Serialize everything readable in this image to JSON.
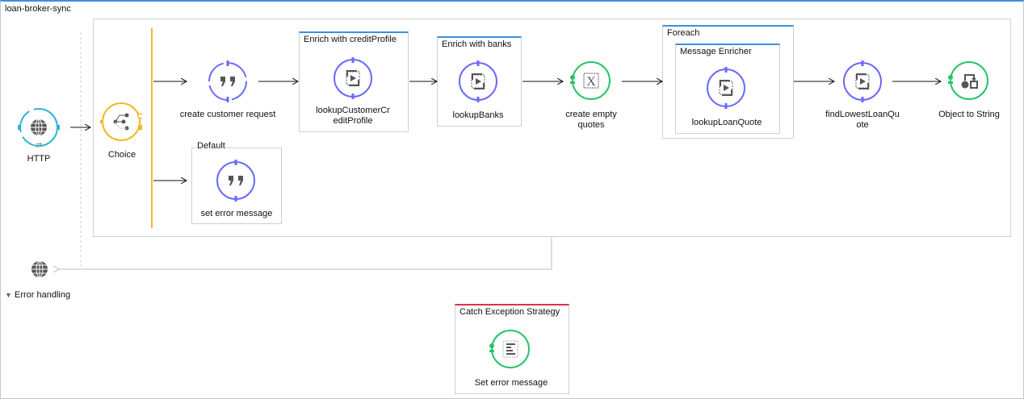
{
  "flow": {
    "name": "loan-broker-sync"
  },
  "colors": {
    "accent": "#3b8fe0",
    "http": "#2bb5d4",
    "choice": "#f2b928",
    "component": "#6a6aff",
    "transformer": "#27c46a",
    "error": "#d8334a"
  },
  "nodes": {
    "http": {
      "label": "HTTP",
      "icon": "globe-icon"
    },
    "choice": {
      "label": "Choice",
      "icon": "choice-branch-icon"
    },
    "create_customer_request": {
      "label": "create customer request",
      "icon": "quote-icon"
    },
    "lookup_customer": {
      "label": "lookupCustomerCreditProfile",
      "line1": "lookupCustomerCr",
      "line2": "editProfile",
      "icon": "flow-ref-icon"
    },
    "lookup_banks": {
      "label": "lookupBanks",
      "icon": "flow-ref-icon"
    },
    "create_empty_quotes": {
      "label": "create empty quotes",
      "line1": "create empty",
      "line2": "quotes",
      "icon": "expression-icon"
    },
    "lookup_loan_quote": {
      "label": "lookupLoanQuote",
      "icon": "flow-ref-icon"
    },
    "find_lowest": {
      "label": "findLowestLoanQuote",
      "line1": "findLowestLoanQu",
      "line2": "ote",
      "icon": "flow-ref-icon"
    },
    "object_to_string": {
      "label": "Object to String",
      "icon": "transformer-icon"
    },
    "set_error_message": {
      "label": "set error message",
      "icon": "quote-icon"
    },
    "catch_set_error": {
      "label": "Set error message",
      "icon": "logger-icon"
    }
  },
  "scopes": {
    "enrich_credit": "Enrich with creditProfile",
    "enrich_banks": "Enrich with banks",
    "foreach": "Foreach",
    "message_enricher": "Message Enricher",
    "default": "Default",
    "catch": "Catch Exception Strategy"
  },
  "error_handling": {
    "label": "Error handling",
    "expanded": true
  }
}
